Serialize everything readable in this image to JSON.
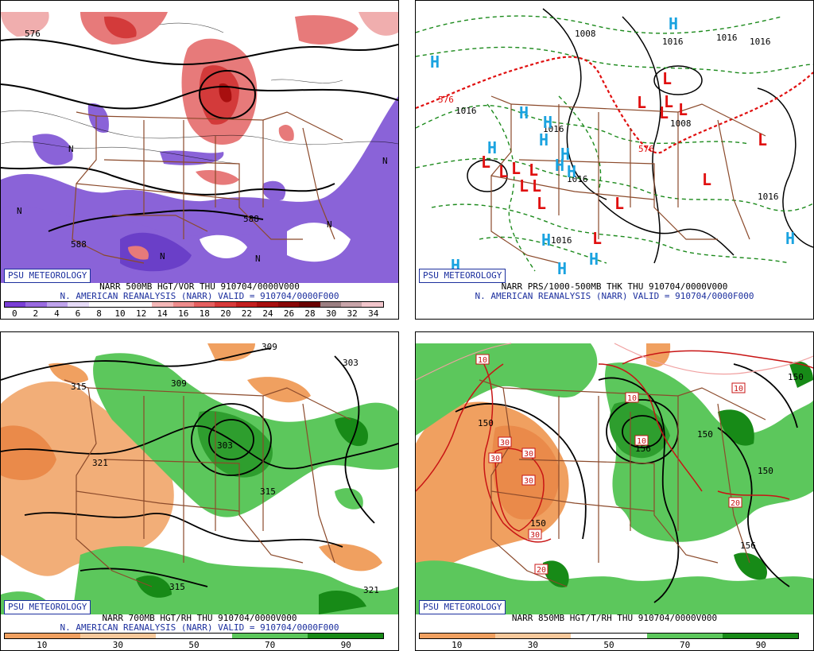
{
  "brand": "PSU METEOROLOGY",
  "panels": {
    "vor500": {
      "caption1": "NARR 500MB HGT/VOR THU 910704/0000V000",
      "caption2": "N. AMERICAN REANALYSIS (NARR) VALID = 910704/0000F000",
      "scale_labels": [
        "0",
        "2",
        "4",
        "6",
        "8",
        "10",
        "12",
        "14",
        "16",
        "18",
        "20",
        "22",
        "24",
        "26",
        "28",
        "30",
        "32",
        "34"
      ],
      "scale_colors": [
        "#7a3fd6",
        "#9a6be0",
        "#bfa3ec",
        "#e6dbf7",
        "#ffffff",
        "#ffffff",
        "#ffffff",
        "#f4b8b8",
        "#ee8c8c",
        "#e56060",
        "#d83a3a",
        "#c41f1f",
        "#a80f0f",
        "#8a0808",
        "#6b0303",
        "#9b7f82",
        "#c8a5aa",
        "#f2c6cc"
      ],
      "contour_labels": [
        "576",
        "588",
        "588",
        "N",
        "N",
        "N",
        "N",
        "N",
        "N"
      ]
    },
    "thk": {
      "caption1": "NARR PRS/1000-500MB THK THU 910704/0000V000",
      "caption2": "N. AMERICAN REANALYSIS (NARR) VALID = 910704/0000F000",
      "contour_labels": [
        "1008",
        "1016",
        "1016",
        "1016",
        "1016",
        "1016",
        "1016",
        "1016",
        "1008",
        "1016",
        "576"
      ],
      "highs": [
        "H",
        "H",
        "H",
        "H",
        "H",
        "H",
        "H",
        "H",
        "H",
        "H",
        "H",
        "H",
        "H",
        "H"
      ],
      "lows": [
        "L",
        "L",
        "L",
        "L",
        "L",
        "L",
        "L",
        "L",
        "L",
        "L",
        "L",
        "L",
        "L",
        "L",
        "L",
        "L"
      ]
    },
    "rh700": {
      "caption1": "NARR 700MB HGT/RH THU 910704/0000V000",
      "caption2": "N. AMERICAN REANALYSIS (NARR) VALID = 910704/0000F000",
      "scale_labels": [
        "10",
        "30",
        "50",
        "70",
        "90"
      ],
      "scale_colors": [
        "#f0a060",
        "#f7c99c",
        "#ffffff",
        "#5cc75c",
        "#178a17"
      ],
      "contour_labels": [
        "309",
        "309",
        "303",
        "315",
        "315",
        "321",
        "303",
        "315",
        "321"
      ]
    },
    "t850": {
      "caption1": "NARR 850MB HGT/T/RH THU 910704/0000V000",
      "scale_labels": [
        "10",
        "30",
        "50",
        "70",
        "90"
      ],
      "scale_colors": [
        "#f0a060",
        "#f7c99c",
        "#ffffff",
        "#5cc75c",
        "#178a17"
      ],
      "contour_labels": [
        "150",
        "150",
        "150",
        "156",
        "156",
        "150",
        "150"
      ],
      "temp_labels": [
        "10",
        "10",
        "10",
        "10",
        "30",
        "30",
        "30",
        "30",
        "30",
        "20",
        "20"
      ]
    }
  }
}
